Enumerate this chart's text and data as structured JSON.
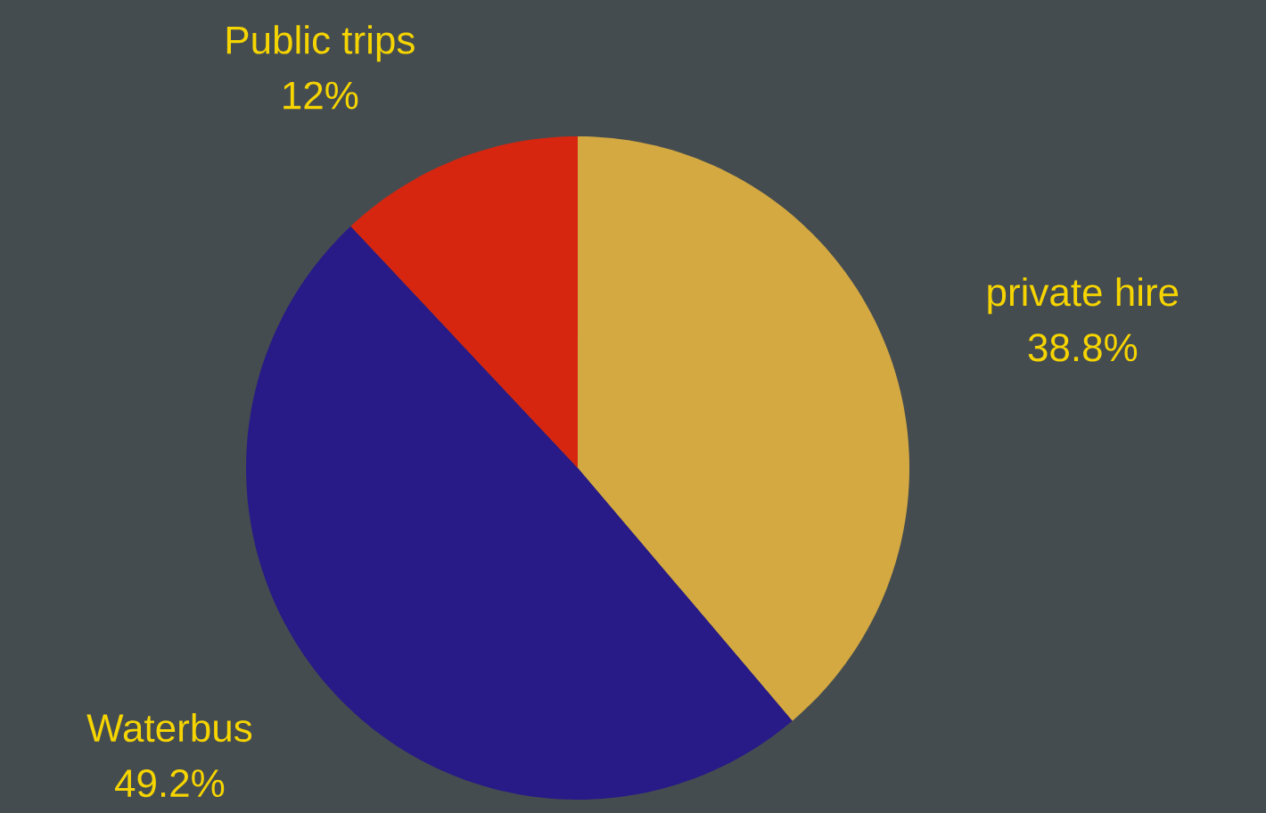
{
  "chart_data": {
    "type": "pie",
    "categories": [
      "private hire",
      "Waterbus",
      "Public trips"
    ],
    "values": [
      38.8,
      49.2,
      12
    ],
    "value_labels": [
      "38.8%",
      "49.2%",
      "12%"
    ],
    "colors": [
      "#d4a942",
      "#281a87",
      "#d7260f"
    ]
  }
}
